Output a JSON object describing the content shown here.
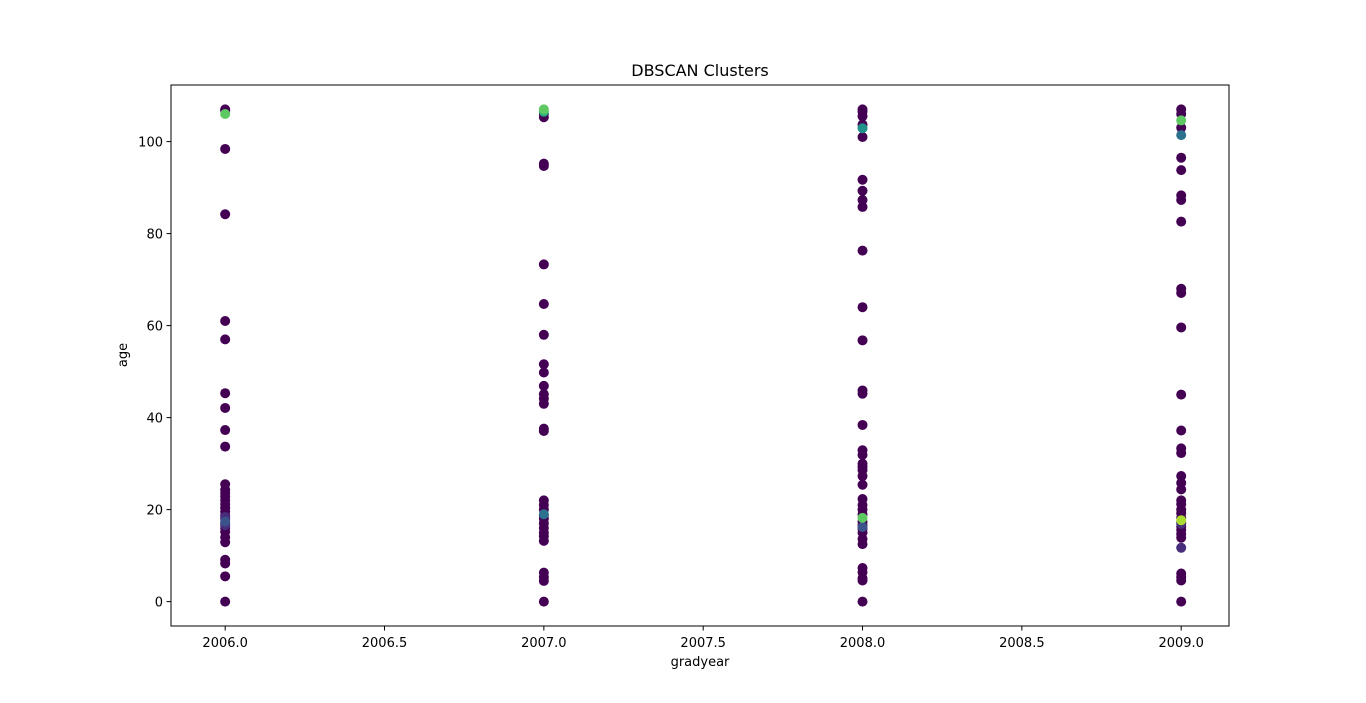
{
  "chart_data": {
    "type": "scatter",
    "title": "DBSCAN Clusters",
    "xlabel": "gradyear",
    "ylabel": "age",
    "xlim": [
      2005.83,
      2009.15
    ],
    "ylim": [
      -5.3,
      112.3
    ],
    "xticks": [
      2006.0,
      2006.5,
      2007.0,
      2007.5,
      2008.0,
      2008.5,
      2009.0
    ],
    "xtick_labels": [
      "2006.0",
      "2006.5",
      "2007.0",
      "2007.5",
      "2008.0",
      "2008.5",
      "2009.0"
    ],
    "yticks": [
      0,
      20,
      40,
      60,
      80,
      100
    ],
    "ytick_labels": [
      "0",
      "20",
      "40",
      "60",
      "80",
      "100"
    ],
    "grid": false,
    "legend": "none",
    "colors": {
      "noise": "#440154",
      "c1": "#472d7b",
      "c2": "#3b528b",
      "c3": "#2c728e",
      "c4": "#21918c",
      "c5": "#28ae80",
      "c6": "#5ec962",
      "c7": "#addc30",
      "c8": "#fde725"
    },
    "series": [
      {
        "x": 2006.0,
        "color": "noise",
        "values": [
          0,
          5.5,
          8.3,
          9.1,
          12.9,
          14.0,
          15.2,
          16.0,
          17.0,
          18.0,
          18.8,
          19.6,
          20.4,
          21.2,
          22.0,
          22.8,
          23.6,
          24.3,
          25.5,
          33.7,
          37.3,
          42.1,
          45.3,
          57.0,
          61.0,
          84.2,
          98.4,
          106.7,
          107.0
        ]
      },
      {
        "x": 2006.0,
        "color": "c1",
        "values": [
          16.6,
          18.4
        ]
      },
      {
        "x": 2006.0,
        "color": "c2",
        "values": [
          17.4
        ]
      },
      {
        "x": 2006.0,
        "color": "c6",
        "values": [
          106.0
        ]
      },
      {
        "x": 2007.0,
        "color": "noise",
        "values": [
          0,
          4.5,
          5.3,
          6.3,
          13.2,
          14.2,
          15.0,
          16.0,
          17.0,
          18.0,
          18.8,
          20.0,
          21.0,
          22.0,
          37.1,
          37.6,
          43.0,
          44.1,
          45.1,
          46.9,
          49.8,
          51.6,
          58.0,
          64.7,
          73.3,
          94.7,
          95.2,
          105.3,
          106.0
        ]
      },
      {
        "x": 2007.0,
        "color": "c3",
        "values": [
          19.0
        ]
      },
      {
        "x": 2007.0,
        "color": "c5",
        "values": [
          106.5
        ]
      },
      {
        "x": 2007.0,
        "color": "c6",
        "values": [
          107.0
        ]
      },
      {
        "x": 2008.0,
        "color": "noise",
        "values": [
          0,
          4.6,
          5.1,
          6.4,
          7.3,
          12.5,
          13.6,
          15.0,
          15.8,
          16.6,
          17.4,
          19.0,
          20.0,
          21.0,
          22.3,
          25.4,
          27.3,
          28.6,
          29.3,
          30.0,
          31.9,
          32.9,
          38.4,
          45.2,
          45.9,
          56.8,
          64.0,
          76.3,
          85.8,
          87.3,
          89.3,
          91.7,
          101.0,
          103.7,
          105.5,
          106.5,
          107.0
        ]
      },
      {
        "x": 2008.0,
        "color": "c2",
        "values": [
          16.2
        ]
      },
      {
        "x": 2008.0,
        "color": "c6",
        "values": [
          18.2
        ]
      },
      {
        "x": 2008.0,
        "color": "c4",
        "values": [
          102.9
        ]
      },
      {
        "x": 2009.0,
        "color": "noise",
        "values": [
          0,
          4.6,
          5.3,
          6.1,
          13.9,
          14.7,
          15.6,
          16.3,
          17.3,
          18.2,
          19.2,
          20.0,
          21.2,
          22.0,
          24.4,
          25.8,
          27.3,
          32.3,
          33.3,
          37.2,
          45.0,
          59.6,
          67.1,
          68.0,
          82.6,
          87.3,
          88.3,
          93.8,
          96.5,
          103.0,
          106.0,
          107.0
        ]
      },
      {
        "x": 2009.0,
        "color": "c1",
        "values": [
          11.7,
          16.9
        ]
      },
      {
        "x": 2009.0,
        "color": "c3",
        "values": [
          101.4
        ]
      },
      {
        "x": 2009.0,
        "color": "c7",
        "values": [
          17.7
        ]
      },
      {
        "x": 2009.0,
        "color": "c6",
        "values": [
          104.6
        ]
      }
    ]
  }
}
